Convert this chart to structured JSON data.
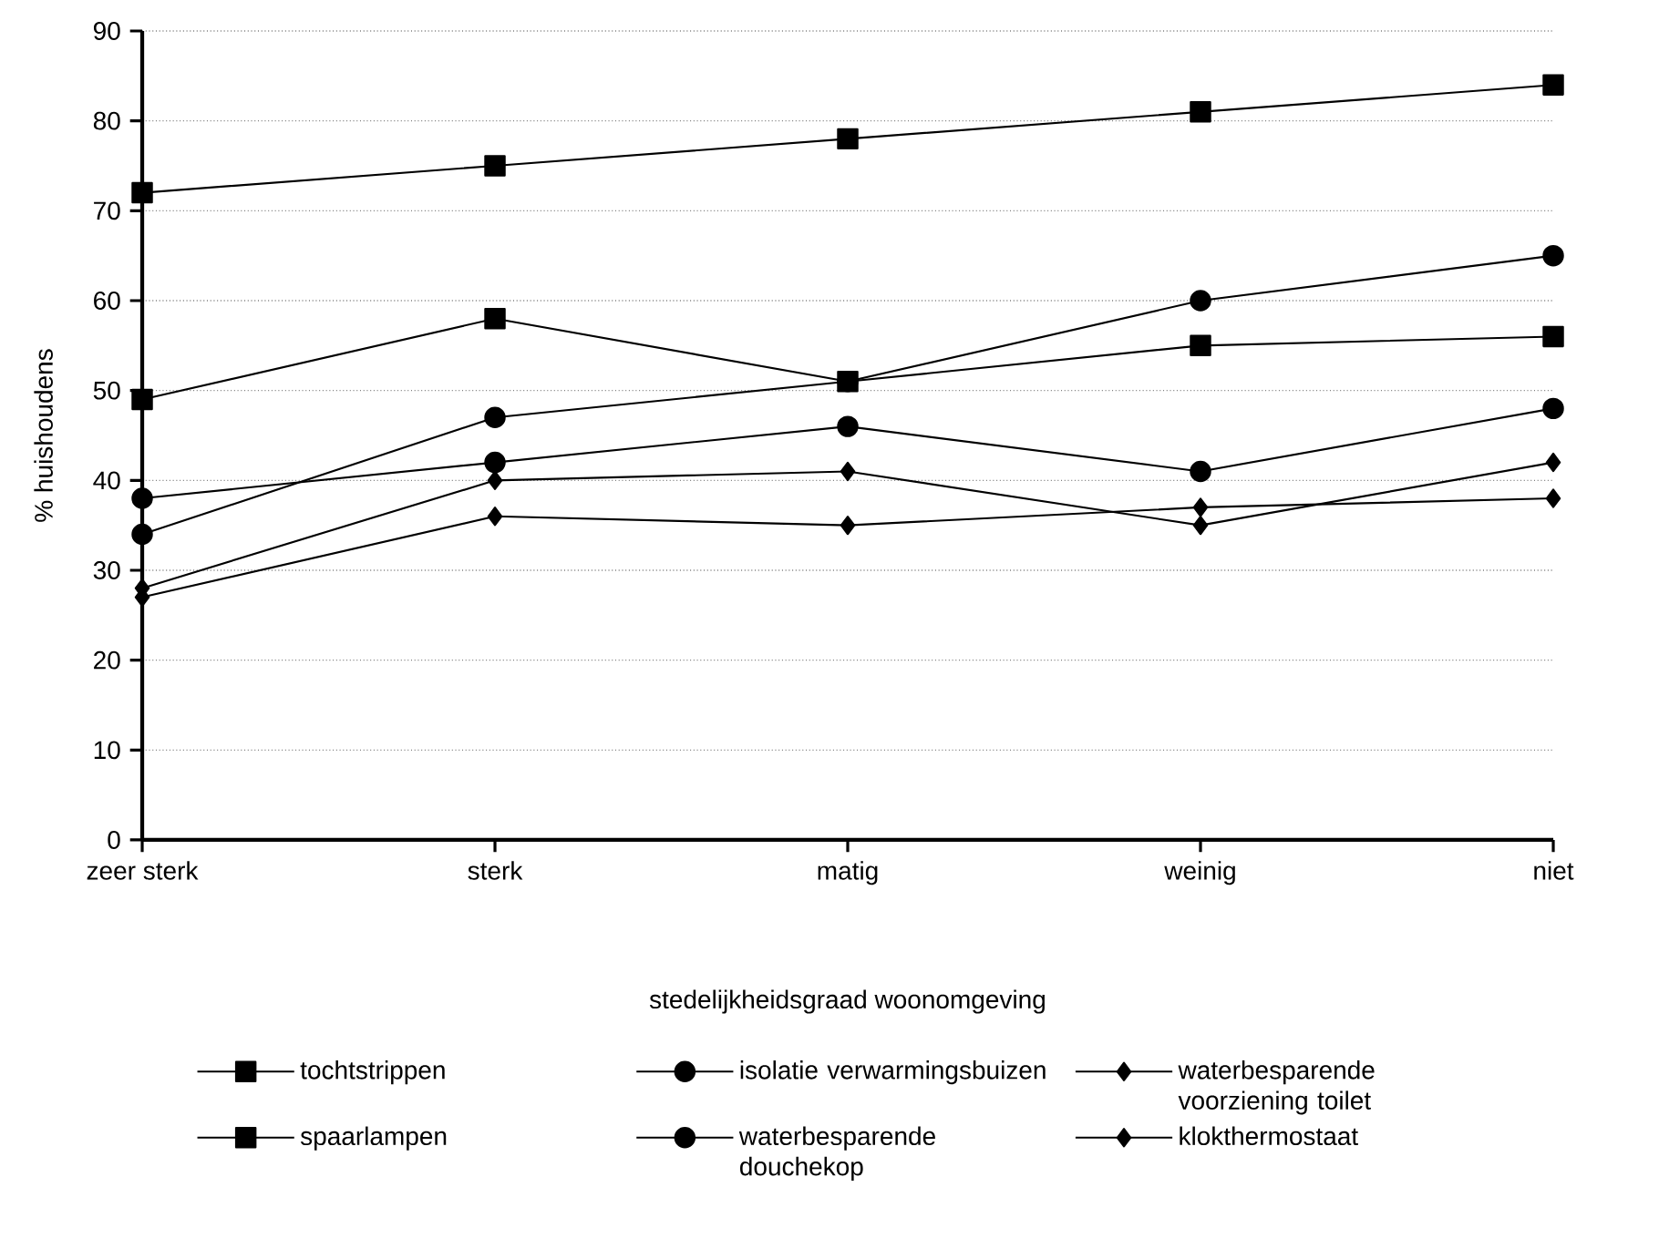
{
  "chart_data": {
    "type": "line",
    "xlabel": "stedelijkheidsgraad woonomgeving",
    "ylabel": "% huishoudens",
    "categories": [
      "zeer sterk",
      "sterk",
      "matig",
      "weinig",
      "niet"
    ],
    "ylim": [
      0,
      90
    ],
    "yticks": [
      0,
      10,
      20,
      30,
      40,
      50,
      60,
      70,
      80,
      90
    ],
    "grid": "y",
    "legend": "bottom",
    "line_style": "solid",
    "series": [
      {
        "name": "tochtstrippen",
        "color": "#000000",
        "marker": "square",
        "values": [
          72,
          75,
          78,
          81,
          84
        ]
      },
      {
        "name": "isolatie verwarmingsbuizen",
        "color": "#000000",
        "marker": "circle",
        "values": [
          34,
          47,
          51,
          60,
          65
        ]
      },
      {
        "name": "waterbesparende voorziening toilet",
        "color": "#000000",
        "marker": "diamond",
        "values": [
          28,
          40,
          41,
          35,
          42
        ]
      },
      {
        "name": "spaarlampen",
        "color": "#000000",
        "marker": "square",
        "values": [
          49,
          58,
          51,
          55,
          56
        ]
      },
      {
        "name": "waterbesparende douchekop",
        "color": "#000000",
        "marker": "circle",
        "values": [
          38,
          42,
          46,
          41,
          48
        ]
      },
      {
        "name": "klokthermostaat",
        "color": "#000000",
        "marker": "diamond",
        "values": [
          27,
          36,
          35,
          37,
          38
        ]
      }
    ]
  }
}
